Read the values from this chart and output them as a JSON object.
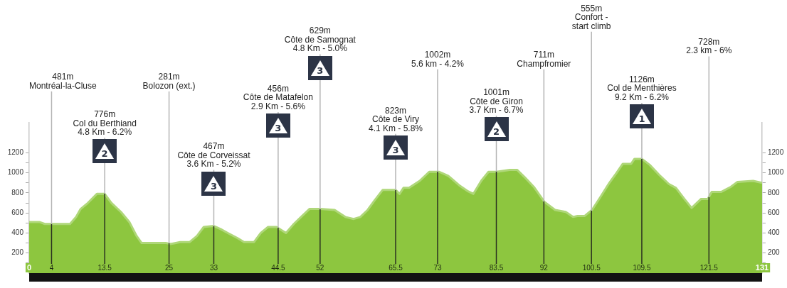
{
  "chart_data": {
    "type": "area",
    "x": [
      0,
      1.8,
      2.8,
      4.4,
      7.3,
      8.4,
      9.2,
      10.5,
      12.1,
      13.5,
      14.7,
      16.4,
      17.9,
      19.2,
      20.1,
      22.3,
      24.5,
      25.3,
      27,
      28.7,
      30,
      31.2,
      33,
      34.2,
      35.5,
      37.2,
      38.4,
      40.2,
      41.4,
      42.7,
      44.2,
      44.5,
      45.9,
      47.3,
      48.6,
      50.1,
      52,
      54.6,
      56.5,
      58,
      59.2,
      60.5,
      61.8,
      63.2,
      65.5,
      66.2,
      66.9,
      67.9,
      69.8,
      71.5,
      73.3,
      74.9,
      77,
      78.3,
      79.4,
      80.8,
      82.1,
      83.5,
      85.9,
      87.2,
      88.5,
      90.2,
      92.1,
      94,
      95.9,
      97.2,
      98,
      99.3,
      100.6,
      102,
      103.7,
      105,
      106.1,
      107.6,
      108.2,
      109.5,
      110.9,
      112.6,
      114.3,
      115.6,
      117.1,
      118.4,
      120.1,
      121.3,
      122,
      123.7,
      125.4,
      126.6,
      129.4,
      131
    ],
    "series": [
      {
        "color": "#8dc63f",
        "values": [
          510,
          510,
          490,
          490,
          490,
          560,
          640,
          700,
          790,
          790,
          700,
          610,
          510,
          370,
          300,
          300,
          300,
          290,
          310,
          310,
          370,
          460,
          470,
          440,
          400,
          350,
          310,
          310,
          400,
          460,
          460,
          450,
          400,
          490,
          560,
          640,
          640,
          630,
          560,
          540,
          560,
          630,
          730,
          830,
          830,
          790,
          850,
          850,
          920,
          1010,
          1010,
          970,
          870,
          820,
          790,
          920,
          1010,
          1010,
          1030,
          1030,
          960,
          860,
          710,
          630,
          610,
          560,
          570,
          570,
          630,
          750,
          900,
          1000,
          1090,
          1090,
          1140,
          1140,
          1080,
          980,
          890,
          850,
          740,
          650,
          740,
          740,
          810,
          810,
          860,
          910,
          920,
          900
        ]
      }
    ],
    "xlim": [
      0,
      131
    ],
    "xticks": [
      0,
      4,
      13.5,
      25,
      33,
      44.5,
      52,
      65.5,
      73,
      83.5,
      92,
      100.5,
      109.5,
      121.5,
      131
    ],
    "ylim": [
      0,
      1500
    ],
    "yticks": [
      {
        "value": 100,
        "label": null
      },
      200,
      {
        "value": 300,
        "label": null
      },
      400,
      {
        "value": 500,
        "label": null
      },
      600,
      {
        "value": 700,
        "label": null
      },
      800,
      {
        "value": 900,
        "label": null
      },
      1000,
      {
        "value": 1100,
        "label": null
      },
      1200
    ],
    "y2lim": [
      0,
      1500
    ],
    "y2ticks": [
      {
        "value": 100,
        "label": null
      },
      200,
      {
        "value": 300,
        "label": null
      },
      400,
      {
        "value": 500,
        "label": null
      },
      600,
      {
        "value": 700,
        "label": null
      },
      800,
      {
        "value": 900,
        "label": null
      },
      1000,
      {
        "value": 1100,
        "label": null
      },
      1200
    ],
    "grid": false,
    "legend": false,
    "ref_lines": [
      {
        "axis": "x",
        "value": 13.5,
        "label": "776m\nCol du Berthiand\n4.8 Km - 6.2%"
      },
      {
        "axis": "x",
        "value": 33,
        "label": "467m\nCôte de Corveissat\n3.6 Km - 5.2%"
      },
      {
        "axis": "x",
        "value": 44.5,
        "label": "456m\nCôte de Matafelon\n2.9 Km - 5.6%"
      },
      {
        "axis": "x",
        "value": 52,
        "label": "629m\nCôte de Samognat\n4.8 Km - 5.0%"
      },
      {
        "axis": "x",
        "value": 65.5,
        "label": "823m\nCôte de Viry\n4.1 Km - 5.8%"
      },
      {
        "axis": "x",
        "value": 83.5,
        "label": "1001m\nCôte de Giron\n3.7 Km - 6.7%"
      },
      {
        "axis": "x",
        "value": 109.5,
        "label": "1126m\nCol de Menthières\n9.2 Km - 6.2%"
      },
      {
        "axis": "x",
        "value": 4,
        "label": "481m\nMontréal-la-Cluse"
      },
      {
        "axis": "x",
        "value": 25,
        "label": "281m\nBolozon (ext.)"
      },
      {
        "axis": "x",
        "value": 73,
        "label": "1002m\n5.6 km - 4.2%"
      },
      {
        "axis": "x",
        "value": 92,
        "label": "711m\nChampfromier"
      },
      {
        "axis": "x",
        "value": 100.5,
        "label": "555m\nConfort -\nstart climb"
      },
      {
        "axis": "x",
        "value": 121.5,
        "label": "728m\n2.3 km - 6%"
      }
    ],
    "annotations": [
      "2",
      "3",
      "3",
      "3",
      "3",
      "2",
      "1"
    ]
  }
}
